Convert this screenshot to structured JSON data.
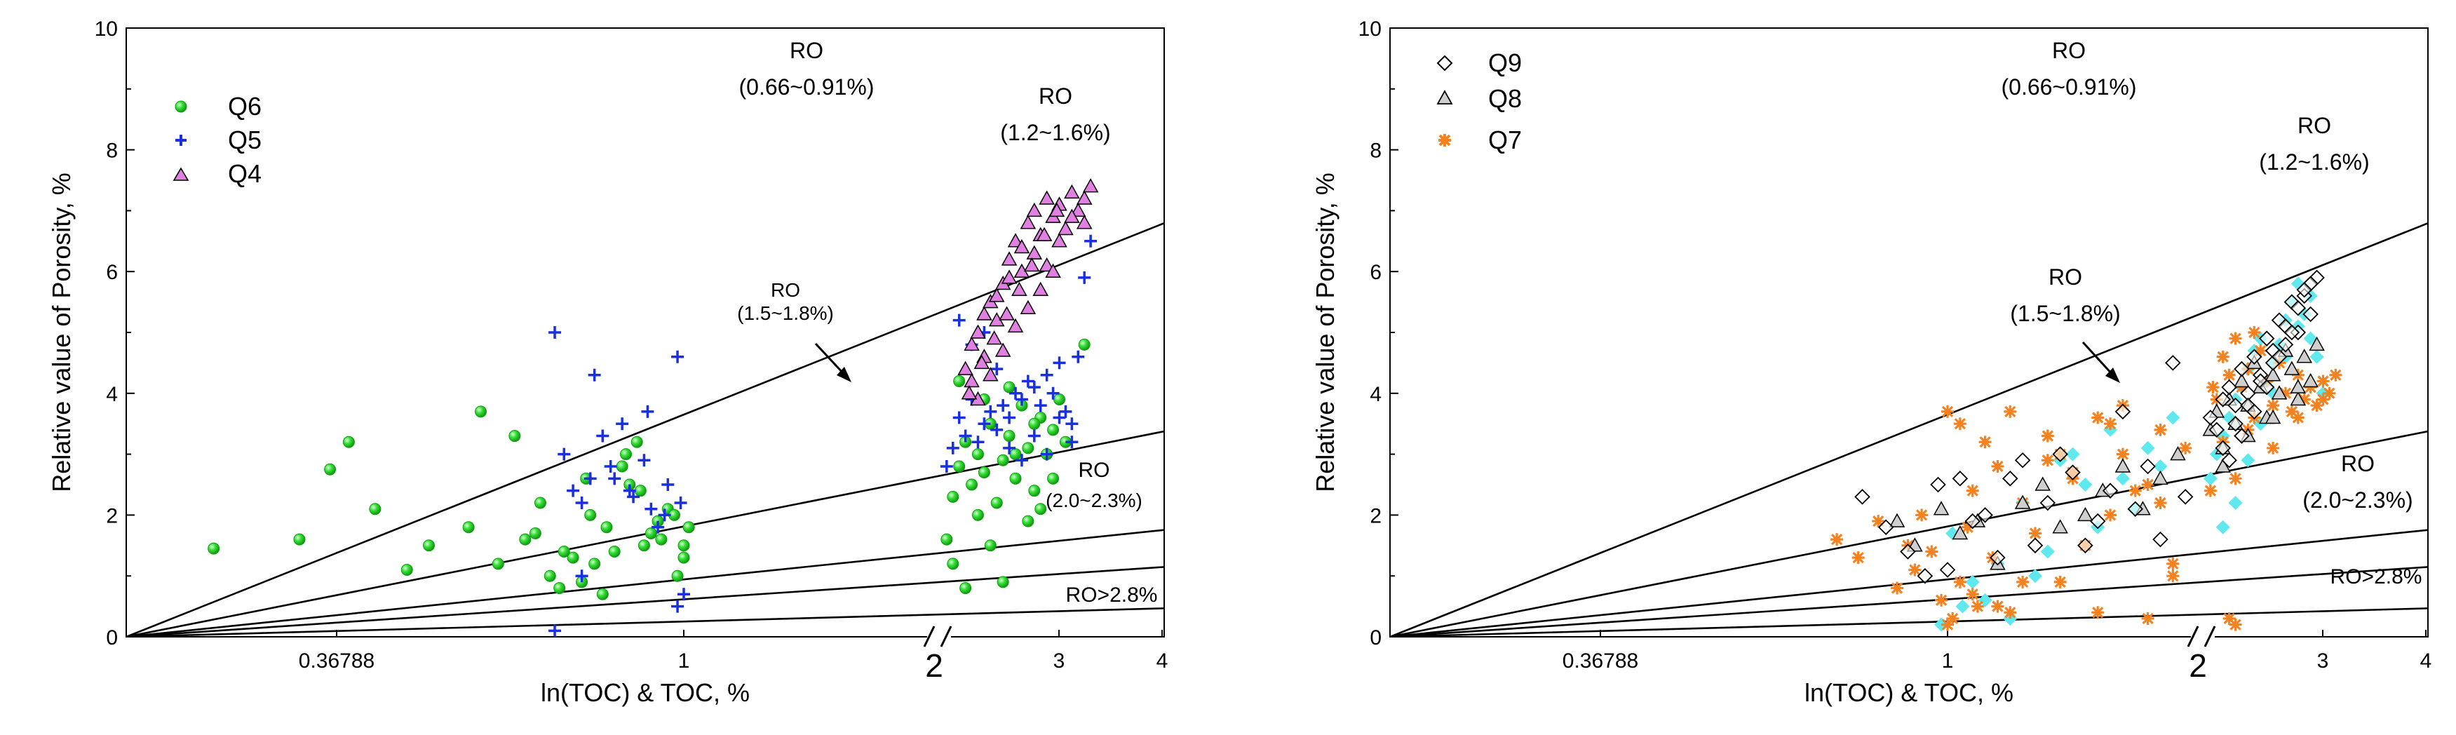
{
  "chart_data": [
    {
      "type": "scatter",
      "panel": "left",
      "xlabel": "ln(TOC) & TOC, %",
      "ylabel": "Relative value of Porosity, %",
      "x_tick_labels": [
        "0.36788",
        "1",
        "2",
        "3",
        "4"
      ],
      "y_tick_labels": [
        "0",
        "2",
        "4",
        "6",
        "8",
        "10"
      ],
      "ylim": [
        0,
        10
      ],
      "legend_position": "top-left",
      "line_slopes": [
        1.51,
        0.75,
        0.39,
        0.255,
        0.104
      ],
      "region_labels": [
        {
          "title": "RO",
          "range": "(0.66~0.91%)"
        },
        {
          "title": "RO",
          "range": "(1.2~1.6%)"
        },
        {
          "title": "RO",
          "range": "(1.5~1.8%)"
        },
        {
          "title": "RO",
          "range": "(2.0~2.3%)"
        },
        {
          "title": "RO>2.8%",
          "range": ""
        }
      ],
      "series": [
        {
          "name": "Q6",
          "marker": "circle",
          "color": "#1ed81e",
          "x": [
            0.22,
            0.29,
            0.32,
            0.37,
            0.41,
            0.34,
            0.44,
            0.5,
            0.55,
            0.52,
            0.6,
            0.62,
            0.65,
            0.67,
            0.7,
            0.72,
            0.75,
            0.74,
            0.77,
            0.8,
            0.82,
            0.84,
            0.86,
            0.88,
            0.9,
            0.92,
            0.95,
            0.98,
            1.0,
            1.02,
            0.58,
            0.63,
            0.68,
            0.73,
            0.78,
            0.83,
            0.87,
            0.93,
            0.97,
            1.0,
            2.1,
            2.15,
            2.2,
            2.25,
            2.3,
            2.35,
            2.4,
            2.45,
            2.5,
            2.55,
            2.6,
            2.65,
            2.7,
            2.75,
            2.8,
            2.85,
            2.9,
            2.95,
            3.0,
            3.05,
            2.15,
            2.25,
            2.35,
            2.45,
            2.55,
            2.65,
            2.75,
            2.85,
            2.95,
            2.2,
            2.4,
            2.6,
            2.8,
            3.2
          ],
          "y": [
            1.45,
            1.6,
            2.75,
            2.1,
            1.1,
            3.2,
            1.5,
            1.8,
            1.2,
            3.7,
            1.6,
            1.7,
            1.0,
            0.8,
            1.3,
            0.9,
            1.2,
            2.0,
            0.7,
            1.4,
            2.8,
            2.5,
            3.2,
            1.5,
            1.7,
            1.9,
            2.1,
            1.0,
            1.3,
            1.8,
            3.3,
            2.2,
            1.4,
            2.6,
            1.8,
            3.0,
            2.4,
            1.6,
            2.0,
            1.5,
            1.6,
            2.3,
            2.8,
            3.2,
            2.5,
            3.0,
            2.7,
            3.5,
            2.2,
            2.9,
            3.3,
            2.6,
            3.8,
            3.1,
            2.4,
            3.6,
            3.0,
            3.4,
            3.9,
            3.2,
            1.2,
            0.8,
            2.0,
            1.5,
            0.9,
            3.0,
            1.9,
            2.1,
            2.6,
            4.2,
            3.9,
            4.1,
            3.5,
            4.8
          ]
        },
        {
          "name": "Q5",
          "marker": "plus",
          "color": "#1a2fe0",
          "x": [
            0.66,
            0.7,
            0.72,
            0.75,
            0.77,
            0.8,
            0.82,
            0.85,
            0.88,
            0.9,
            0.92,
            0.95,
            0.98,
            1.0,
            0.68,
            0.74,
            0.79,
            0.84,
            0.89,
            0.94,
            0.99,
            0.66,
            0.72,
            0.98,
            2.1,
            2.15,
            2.2,
            2.25,
            2.3,
            2.35,
            2.4,
            2.45,
            2.5,
            2.55,
            2.6,
            2.65,
            2.7,
            2.75,
            2.8,
            2.85,
            2.9,
            2.95,
            3.0,
            3.05,
            3.1,
            3.15,
            3.2,
            3.25,
            2.2,
            2.3,
            2.4,
            2.5,
            2.6,
            2.7,
            2.8,
            2.9,
            3.0,
            3.1
          ],
          "y": [
            5.0,
            2.4,
            2.2,
            4.3,
            3.3,
            2.6,
            3.5,
            2.3,
            2.9,
            2.1,
            1.8,
            2.5,
            4.6,
            0.7,
            3.0,
            2.6,
            2.8,
            2.4,
            3.7,
            2.0,
            2.2,
            0.1,
            1.0,
            0.5,
            2.8,
            3.1,
            3.6,
            3.3,
            3.9,
            3.2,
            3.5,
            3.7,
            3.4,
            3.8,
            3.6,
            4.0,
            3.9,
            4.2,
            4.1,
            3.8,
            4.3,
            4.0,
            4.5,
            3.7,
            3.5,
            4.6,
            5.9,
            6.5,
            5.2,
            4.8,
            5.0,
            4.4,
            3.1,
            2.9,
            3.3,
            3.0,
            3.6,
            3.2
          ]
        },
        {
          "name": "Q4",
          "marker": "triangle",
          "color": "#e080e0",
          "x": [
            2.25,
            2.3,
            2.35,
            2.4,
            2.45,
            2.5,
            2.55,
            2.6,
            2.65,
            2.7,
            2.75,
            2.8,
            2.85,
            2.9,
            2.95,
            3.0,
            3.05,
            3.1,
            3.15,
            3.2,
            3.25,
            2.3,
            2.4,
            2.5,
            2.6,
            2.7,
            2.8,
            2.9,
            3.0,
            3.1,
            3.2,
            2.35,
            2.45,
            2.55,
            2.65,
            2.75,
            2.85,
            2.95,
            2.28,
            2.38,
            2.48,
            2.58,
            2.68,
            2.78,
            2.88,
            2.98
          ],
          "y": [
            4.4,
            4.8,
            5.0,
            5.3,
            5.5,
            5.6,
            5.8,
            6.2,
            6.5,
            6.4,
            6.8,
            7.0,
            6.6,
            7.2,
            6.9,
            7.1,
            6.7,
            7.3,
            7.0,
            6.8,
            7.4,
            4.2,
            4.6,
            5.2,
            5.9,
            6.0,
            6.3,
            6.1,
            6.5,
            6.9,
            7.2,
            3.9,
            4.3,
            4.7,
            5.1,
            5.4,
            5.7,
            6.0,
            4.0,
            4.5,
            4.9,
            5.3,
            5.7,
            6.1,
            6.6,
            7.0
          ]
        }
      ]
    },
    {
      "type": "scatter",
      "panel": "right",
      "xlabel": "ln(TOC) & TOC, %",
      "ylabel": "Relative value of Porosity, %",
      "x_tick_labels": [
        "0.36788",
        "1",
        "2",
        "3",
        "4"
      ],
      "y_tick_labels": [
        "0",
        "2",
        "4",
        "6",
        "8",
        "10"
      ],
      "ylim": [
        0,
        10
      ],
      "legend_position": "top-left",
      "line_slopes": [
        1.51,
        0.75,
        0.39,
        0.255,
        0.104
      ],
      "region_labels": [
        {
          "title": "RO",
          "range": "(0.66~0.91%)"
        },
        {
          "title": "RO",
          "range": "(1.2~1.6%)"
        },
        {
          "title": "RO",
          "range": "(1.5~1.8%)"
        },
        {
          "title": "RO",
          "range": "(2.0~2.3%)"
        },
        {
          "title": "RO>2.8%",
          "range": ""
        }
      ],
      "extra_series": {
        "name": "",
        "marker": "diamond-filled",
        "color": "#5fe8ee",
        "x": [
          0.98,
          1.02,
          1.06,
          1.1,
          1.15,
          1.2,
          1.25,
          1.3,
          1.35,
          1.4,
          1.45,
          1.5,
          1.55,
          1.6,
          1.65,
          1.7,
          1.75,
          1.8,
          1.85,
          1.9,
          2.1,
          2.15,
          2.2,
          2.25,
          2.3,
          2.35,
          2.4,
          2.45,
          2.5,
          2.55,
          2.6,
          2.65,
          2.7,
          2.75,
          2.8,
          2.85,
          2.9,
          2.95,
          3.0,
          2.2,
          2.3,
          2.4,
          2.5,
          2.6,
          2.7,
          2.8,
          2.9
        ],
        "y": [
          0.2,
          1.7,
          0.5,
          0.9,
          0.6,
          1.2,
          0.3,
          2.2,
          1.0,
          1.4,
          2.9,
          3.0,
          2.5,
          1.8,
          3.4,
          2.6,
          2.1,
          3.1,
          2.8,
          3.6,
          2.6,
          3.0,
          3.3,
          3.6,
          3.9,
          4.1,
          4.4,
          4.7,
          4.9,
          4.2,
          4.5,
          4.8,
          5.2,
          5.5,
          5.8,
          5.3,
          4.9,
          4.6,
          4.0,
          1.8,
          2.2,
          2.9,
          3.5,
          4.0,
          4.6,
          5.1,
          5.6
        ]
      },
      "series": [
        {
          "name": "Q9",
          "marker": "diamond",
          "color": "#000000",
          "x": [
            0.76,
            0.82,
            0.88,
            0.93,
            0.97,
            1.0,
            1.05,
            1.1,
            1.15,
            1.2,
            1.25,
            1.3,
            1.35,
            1.4,
            1.45,
            1.5,
            1.55,
            1.6,
            1.65,
            1.7,
            1.75,
            1.8,
            1.85,
            1.9,
            1.95,
            2.1,
            2.15,
            2.2,
            2.25,
            2.3,
            2.35,
            2.4,
            2.45,
            2.5,
            2.55,
            2.6,
            2.65,
            2.7,
            2.75,
            2.8,
            2.85,
            2.9,
            2.95,
            2.2,
            2.3,
            2.4,
            2.5,
            2.6,
            2.7,
            2.8,
            2.9,
            2.25,
            2.35,
            2.45,
            2.55,
            2.65,
            2.75,
            2.85
          ],
          "y": [
            2.3,
            1.8,
            1.4,
            1.0,
            2.5,
            1.1,
            2.6,
            1.9,
            2.0,
            1.3,
            2.6,
            2.9,
            1.5,
            2.2,
            3.0,
            2.7,
            1.5,
            1.9,
            2.4,
            3.7,
            2.1,
            2.8,
            1.6,
            4.5,
            2.3,
            3.6,
            3.4,
            3.9,
            4.1,
            3.8,
            4.4,
            4.0,
            4.6,
            4.3,
            4.9,
            4.5,
            5.2,
            4.8,
            5.5,
            5.0,
            5.6,
            5.3,
            5.9,
            3.1,
            3.5,
            3.8,
            4.2,
            4.7,
            5.1,
            5.4,
            5.8,
            2.9,
            3.3,
            3.7,
            4.1,
            4.6,
            5.0,
            5.7
          ]
        },
        {
          "name": "Q8",
          "marker": "triangle",
          "color": "#9a9a9a",
          "x": [
            0.85,
            0.9,
            0.98,
            1.05,
            1.12,
            1.2,
            1.3,
            1.38,
            1.45,
            1.55,
            1.62,
            1.7,
            1.78,
            1.85,
            1.92,
            2.1,
            2.15,
            2.2,
            2.25,
            2.3,
            2.35,
            2.4,
            2.45,
            2.5,
            2.55,
            2.6,
            2.65,
            2.7,
            2.75,
            2.8,
            2.85,
            2.9,
            2.95,
            2.2,
            2.4,
            2.6,
            2.8
          ],
          "y": [
            1.9,
            1.5,
            2.1,
            1.7,
            1.9,
            1.2,
            2.2,
            2.5,
            1.8,
            2.0,
            2.4,
            2.8,
            2.1,
            2.6,
            3.0,
            3.4,
            3.7,
            3.1,
            3.9,
            3.5,
            4.2,
            3.8,
            4.5,
            4.1,
            3.6,
            4.3,
            4.0,
            4.7,
            4.4,
            3.9,
            4.6,
            4.2,
            4.8,
            2.8,
            3.3,
            3.6,
            4.1
          ]
        },
        {
          "name": "Q7",
          "marker": "asterisk",
          "color": "#f58220",
          "x": [
            0.7,
            0.75,
            0.8,
            0.85,
            0.88,
            0.9,
            0.92,
            0.95,
            0.98,
            1.0,
            1.02,
            1.05,
            1.08,
            1.1,
            1.12,
            1.15,
            1.18,
            1.2,
            1.25,
            1.3,
            1.35,
            1.4,
            1.45,
            1.5,
            1.55,
            1.6,
            1.65,
            1.7,
            1.75,
            1.8,
            1.85,
            1.9,
            1.95,
            1.0,
            1.1,
            1.2,
            1.3,
            1.4,
            1.5,
            1.6,
            1.7,
            1.8,
            1.9,
            1.05,
            1.25,
            1.45,
            1.65,
            1.85,
            2.1,
            2.15,
            2.2,
            2.25,
            2.3,
            2.35,
            2.4,
            2.45,
            2.5,
            2.55,
            2.6,
            2.65,
            2.7,
            2.75,
            2.8,
            2.85,
            2.9,
            2.95,
            3.0,
            3.05,
            3.1,
            2.2,
            2.3,
            2.4,
            2.6,
            2.8,
            3.0,
            2.25,
            2.3,
            2.12,
            2.45
          ],
          "y": [
            1.6,
            1.3,
            1.9,
            0.8,
            1.5,
            1.1,
            2.0,
            1.4,
            0.6,
            3.7,
            0.3,
            0.9,
            1.8,
            2.4,
            0.5,
            3.2,
            1.3,
            2.8,
            0.4,
            2.2,
            1.7,
            3.3,
            0.9,
            2.6,
            1.5,
            3.6,
            2.0,
            3.0,
            2.4,
            0.3,
            3.4,
            1.2,
            3.1,
            0.2,
            0.7,
            0.5,
            0.9,
            2.9,
            2.7,
            0.4,
            3.8,
            2.5,
            1.0,
            3.5,
            3.7,
            3.0,
            3.5,
            2.2,
            2.4,
            3.9,
            4.6,
            4.3,
            4.9,
            4.1,
            4.4,
            3.6,
            4.7,
            4.2,
            3.8,
            4.5,
            4.0,
            3.7,
            4.3,
            3.9,
            4.1,
            3.8,
            4.2,
            4.0,
            4.3,
            3.2,
            2.6,
            3.4,
            3.1,
            3.6,
            3.9,
            0.3,
            0.2,
            4.1,
            5.0
          ]
        }
      ]
    }
  ]
}
